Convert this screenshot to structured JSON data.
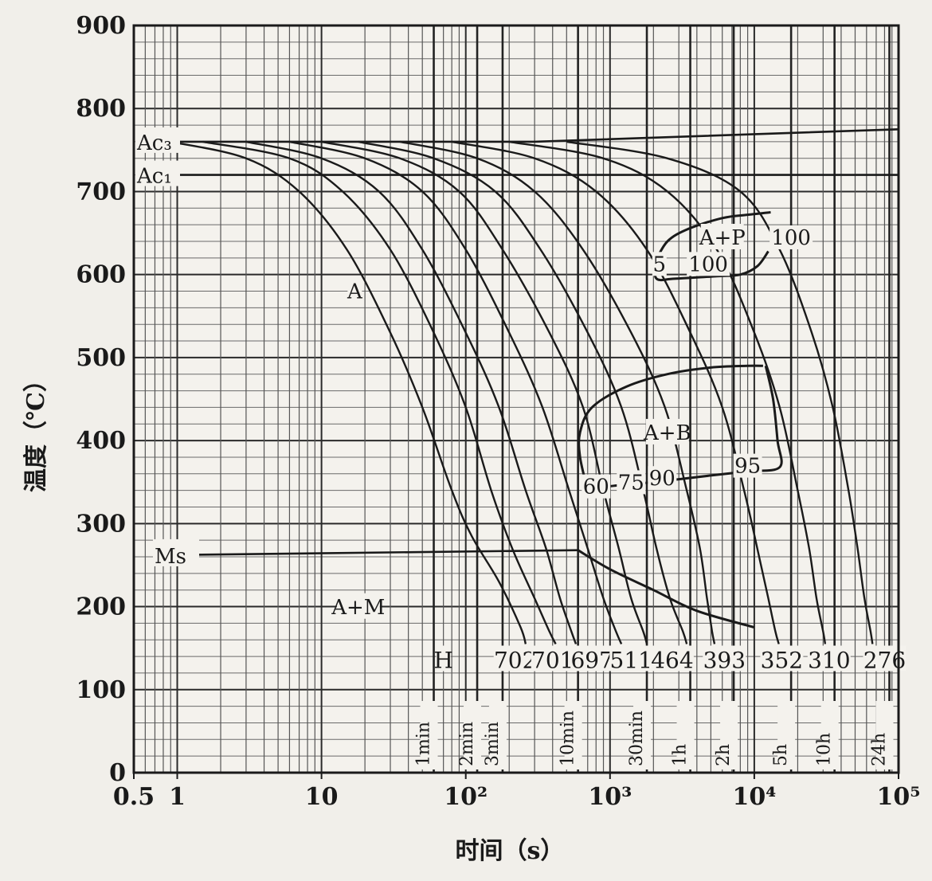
{
  "chart_data": {
    "type": "line",
    "title": "",
    "xlabel": "时间（s）",
    "ylabel": "温度（℃）",
    "xscale": "log",
    "xlim": [
      0.5,
      100000
    ],
    "ylim": [
      0,
      900
    ],
    "grid": true,
    "x_ticks": [
      {
        "v": 0.5,
        "label": "0.5"
      },
      {
        "v": 1,
        "label": "1"
      },
      {
        "v": 10,
        "label": "10"
      },
      {
        "v": 100,
        "label": "10²"
      },
      {
        "v": 1000,
        "label": "10³"
      },
      {
        "v": 10000,
        "label": "10⁴"
      },
      {
        "v": 100000,
        "label": "10⁵"
      }
    ],
    "y_ticks": [
      {
        "v": 0,
        "label": "0"
      },
      {
        "v": 100,
        "label": "100"
      },
      {
        "v": 200,
        "label": "200"
      },
      {
        "v": 300,
        "label": "300"
      },
      {
        "v": 400,
        "label": "400"
      },
      {
        "v": 500,
        "label": "500"
      },
      {
        "v": 600,
        "label": "600"
      },
      {
        "v": 700,
        "label": "700"
      },
      {
        "v": 800,
        "label": "800"
      },
      {
        "v": 900,
        "label": "900"
      }
    ],
    "reference_lines": [
      {
        "label": "Ac₃",
        "y": 760
      },
      {
        "label": "Ac₁",
        "y": 720
      },
      {
        "label": "Ms",
        "y": 262
      }
    ],
    "time_markers": [
      {
        "label": "1min",
        "x": 60
      },
      {
        "label": "2min",
        "x": 120
      },
      {
        "label": "3min",
        "x": 180
      },
      {
        "label": "10min",
        "x": 600
      },
      {
        "label": "30min",
        "x": 1800
      },
      {
        "label": "1h",
        "x": 3600
      },
      {
        "label": "2h",
        "x": 7200
      },
      {
        "label": "5h",
        "x": 18000
      },
      {
        "label": "10h",
        "x": 36000
      },
      {
        "label": "24h",
        "x": 86400
      }
    ],
    "region_labels": [
      {
        "label": "A",
        "x": 17,
        "y": 575
      },
      {
        "label": "A+M",
        "x": 18,
        "y": 195
      },
      {
        "label": "A+P",
        "x": 6000,
        "y": 640
      },
      {
        "label": "A+B",
        "x": 2500,
        "y": 405
      }
    ],
    "percent_labels": [
      {
        "label": "100",
        "x": 18000,
        "y": 640
      },
      {
        "label": "5",
        "x": 2200,
        "y": 608
      },
      {
        "label": "100",
        "x": 4800,
        "y": 608
      },
      {
        "label": "60",
        "x": 800,
        "y": 340
      },
      {
        "label": "75",
        "x": 1400,
        "y": 345
      },
      {
        "label": "90",
        "x": 2300,
        "y": 350
      },
      {
        "label": "95",
        "x": 9000,
        "y": 365
      }
    ],
    "hardness_labels": [
      {
        "label": "H",
        "x": 70,
        "y": 130
      },
      {
        "label": "702",
        "x": 220,
        "y": 130
      },
      {
        "label": "701",
        "x": 400,
        "y": 130
      },
      {
        "label": "697",
        "x": 750,
        "y": 130
      },
      {
        "label": "511",
        "x": 1400,
        "y": 130
      },
      {
        "label": "464",
        "x": 2700,
        "y": 130
      },
      {
        "label": "393",
        "x": 6200,
        "y": 130
      },
      {
        "label": "352",
        "x": 15500,
        "y": 130
      },
      {
        "label": "310",
        "x": 33000,
        "y": 130
      },
      {
        "label": "276",
        "x": 80000,
        "y": 130
      }
    ],
    "series": [
      {
        "name": "c1",
        "points": [
          [
            0.9,
            760
          ],
          [
            3,
            740
          ],
          [
            7,
            700
          ],
          [
            15,
            630
          ],
          [
            30,
            530
          ],
          [
            50,
            440
          ],
          [
            80,
            340
          ],
          [
            110,
            285
          ],
          [
            170,
            230
          ],
          [
            240,
            175
          ],
          [
            260,
            155
          ]
        ]
      },
      {
        "name": "c2",
        "points": [
          [
            1.5,
            760
          ],
          [
            6,
            740
          ],
          [
            14,
            700
          ],
          [
            30,
            630
          ],
          [
            60,
            530
          ],
          [
            100,
            440
          ],
          [
            150,
            340
          ],
          [
            210,
            270
          ],
          [
            300,
            210
          ],
          [
            380,
            170
          ],
          [
            420,
            155
          ]
        ]
      },
      {
        "name": "c3",
        "points": [
          [
            3,
            760
          ],
          [
            10,
            740
          ],
          [
            25,
            700
          ],
          [
            50,
            630
          ],
          [
            100,
            530
          ],
          [
            170,
            440
          ],
          [
            260,
            340
          ],
          [
            360,
            270
          ],
          [
            450,
            210
          ],
          [
            540,
            170
          ],
          [
            580,
            155
          ]
        ]
      },
      {
        "name": "c4",
        "points": [
          [
            6,
            760
          ],
          [
            20,
            740
          ],
          [
            50,
            700
          ],
          [
            100,
            630
          ],
          [
            200,
            530
          ],
          [
            340,
            440
          ],
          [
            520,
            340
          ],
          [
            700,
            270
          ],
          [
            900,
            210
          ],
          [
            1100,
            170
          ],
          [
            1200,
            155
          ]
        ]
      },
      {
        "name": "c5",
        "points": [
          [
            10,
            760
          ],
          [
            35,
            740
          ],
          [
            90,
            700
          ],
          [
            180,
            630
          ],
          [
            380,
            530
          ],
          [
            650,
            440
          ],
          [
            900,
            340
          ],
          [
            1150,
            270
          ],
          [
            1400,
            210
          ],
          [
            1700,
            170
          ],
          [
            1800,
            155
          ]
        ]
      },
      {
        "name": "c6",
        "points": [
          [
            18,
            760
          ],
          [
            60,
            740
          ],
          [
            160,
            700
          ],
          [
            330,
            630
          ],
          [
            700,
            530
          ],
          [
            1200,
            440
          ],
          [
            1700,
            340
          ],
          [
            2100,
            270
          ],
          [
            2600,
            210
          ],
          [
            3200,
            170
          ],
          [
            3400,
            155
          ]
        ]
      },
      {
        "name": "c7",
        "points": [
          [
            35,
            760
          ],
          [
            120,
            740
          ],
          [
            300,
            700
          ],
          [
            650,
            630
          ],
          [
            1400,
            530
          ],
          [
            2400,
            440
          ],
          [
            3400,
            340
          ],
          [
            4200,
            270
          ],
          [
            4700,
            210
          ],
          [
            5100,
            170
          ],
          [
            5300,
            155
          ]
        ]
      },
      {
        "name": "c8",
        "points": [
          [
            80,
            760
          ],
          [
            300,
            740
          ],
          [
            800,
            700
          ],
          [
            1800,
            630
          ],
          [
            3600,
            530
          ],
          [
            6000,
            440
          ],
          [
            8500,
            340
          ],
          [
            10500,
            270
          ],
          [
            12500,
            210
          ],
          [
            14000,
            170
          ],
          [
            14800,
            155
          ]
        ]
      },
      {
        "name": "c9",
        "points": [
          [
            200,
            760
          ],
          [
            900,
            740
          ],
          [
            2500,
            700
          ],
          [
            5500,
            630
          ],
          [
            10000,
            530
          ],
          [
            15000,
            440
          ],
          [
            20000,
            340
          ],
          [
            24000,
            270
          ],
          [
            27000,
            210
          ],
          [
            30000,
            170
          ],
          [
            31000,
            155
          ]
        ]
      },
      {
        "name": "c10",
        "points": [
          [
            500,
            760
          ],
          [
            2500,
            740
          ],
          [
            8000,
            700
          ],
          [
            15000,
            630
          ],
          [
            25000,
            530
          ],
          [
            35000,
            440
          ],
          [
            45000,
            340
          ],
          [
            52000,
            270
          ],
          [
            58000,
            210
          ],
          [
            64000,
            170
          ],
          [
            66000,
            155
          ]
        ]
      }
    ],
    "phase_boundaries": [
      {
        "name": "pearlite-start",
        "points": [
          [
            2050,
            615
          ],
          [
            2500,
            640
          ],
          [
            3500,
            655
          ],
          [
            6000,
            668
          ],
          [
            9000,
            672
          ],
          [
            13000,
            675
          ]
        ]
      },
      {
        "name": "pearlite-end",
        "points": [
          [
            2050,
            615
          ],
          [
            2100,
            595
          ],
          [
            2800,
            595
          ],
          [
            5500,
            598
          ],
          [
            8000,
            600
          ],
          [
            10500,
            610
          ],
          [
            12500,
            628
          ]
        ]
      },
      {
        "name": "bainite-start",
        "points": [
          [
            700,
            340
          ],
          [
            620,
            380
          ],
          [
            620,
            410
          ],
          [
            750,
            440
          ],
          [
            1300,
            465
          ],
          [
            2500,
            480
          ],
          [
            5000,
            488
          ],
          [
            9000,
            490
          ],
          [
            11500,
            490
          ]
        ]
      },
      {
        "name": "bainite-end",
        "points": [
          [
            700,
            340
          ],
          [
            1000,
            345
          ],
          [
            2000,
            350
          ],
          [
            5000,
            358
          ],
          [
            9000,
            363
          ],
          [
            15000,
            368
          ],
          [
            14500,
            400
          ],
          [
            13500,
            450
          ],
          [
            12000,
            490
          ]
        ]
      },
      {
        "name": "ms-drop",
        "points": [
          [
            600,
            268
          ],
          [
            1000,
            245
          ],
          [
            2000,
            220
          ],
          [
            4000,
            195
          ],
          [
            10000,
            175
          ]
        ]
      }
    ]
  }
}
